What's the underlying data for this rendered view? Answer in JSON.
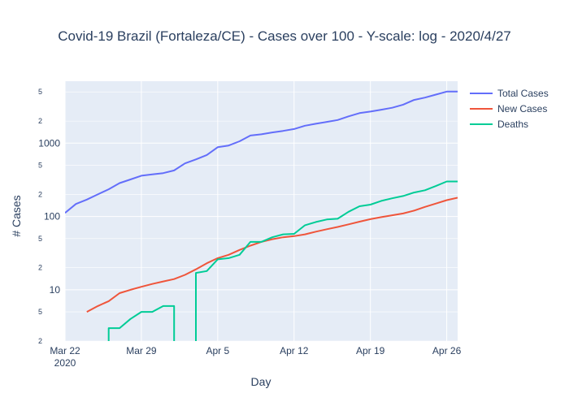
{
  "chart_data": {
    "type": "line",
    "title": "Covid-19 Brazil (Fortaleza/CE) - Cases over 100 - Y-scale: log - 2020/4/27",
    "xlabel": "Day",
    "ylabel": "# Cases",
    "x_axis": {
      "type": "date",
      "range": [
        "2020-03-22",
        "2020-04-27"
      ],
      "ticks": [
        {
          "date": "2020-03-22",
          "label": "Mar 22",
          "sublabel": "2020"
        },
        {
          "date": "2020-03-29",
          "label": "Mar 29"
        },
        {
          "date": "2020-04-05",
          "label": "Apr 5"
        },
        {
          "date": "2020-04-12",
          "label": "Apr 12"
        },
        {
          "date": "2020-04-19",
          "label": "Apr 19"
        },
        {
          "date": "2020-04-26",
          "label": "Apr 26"
        }
      ]
    },
    "y_axis": {
      "type": "log",
      "range": [
        2,
        7000
      ],
      "major_ticks": [
        {
          "value": 10,
          "label": "10"
        },
        {
          "value": 100,
          "label": "100"
        },
        {
          "value": 1000,
          "label": "1000"
        }
      ],
      "minor_ticks": [
        {
          "value": 2,
          "label": "2"
        },
        {
          "value": 5,
          "label": "5"
        },
        {
          "value": 20,
          "label": "2"
        },
        {
          "value": 50,
          "label": "5"
        },
        {
          "value": 200,
          "label": "2"
        },
        {
          "value": 500,
          "label": "5"
        },
        {
          "value": 2000,
          "label": "2"
        },
        {
          "value": 5000,
          "label": "5"
        }
      ]
    },
    "grid": true,
    "legend_position": "top-right",
    "series": [
      {
        "name": "Total Cases",
        "color": "#636efa",
        "x": [
          "2020-03-22",
          "2020-03-23",
          "2020-03-24",
          "2020-03-25",
          "2020-03-26",
          "2020-03-27",
          "2020-03-28",
          "2020-03-29",
          "2020-03-30",
          "2020-03-31",
          "2020-04-01",
          "2020-04-02",
          "2020-04-03",
          "2020-04-04",
          "2020-04-05",
          "2020-04-06",
          "2020-04-07",
          "2020-04-08",
          "2020-04-09",
          "2020-04-10",
          "2020-04-11",
          "2020-04-12",
          "2020-04-13",
          "2020-04-14",
          "2020-04-15",
          "2020-04-16",
          "2020-04-17",
          "2020-04-18",
          "2020-04-19",
          "2020-04-20",
          "2020-04-21",
          "2020-04-22",
          "2020-04-23",
          "2020-04-24",
          "2020-04-25",
          "2020-04-26",
          "2020-04-27"
        ],
        "y": [
          112,
          148,
          170,
          200,
          235,
          285,
          320,
          360,
          375,
          390,
          425,
          530,
          600,
          690,
          880,
          930,
          1060,
          1270,
          1320,
          1400,
          1470,
          1560,
          1730,
          1840,
          1950,
          2070,
          2320,
          2570,
          2700,
          2860,
          3040,
          3350,
          3880,
          4180,
          4600,
          5050,
          5050
        ]
      },
      {
        "name": "New Cases",
        "color": "#EF553B",
        "x": [
          "2020-03-24",
          "2020-03-25",
          "2020-03-26",
          "2020-03-27",
          "2020-03-28",
          "2020-03-29",
          "2020-03-30",
          "2020-03-31",
          "2020-04-01",
          "2020-04-02",
          "2020-04-03",
          "2020-04-04",
          "2020-04-05",
          "2020-04-06",
          "2020-04-07",
          "2020-04-08",
          "2020-04-09",
          "2020-04-10",
          "2020-04-11",
          "2020-04-12",
          "2020-04-13",
          "2020-04-14",
          "2020-04-15",
          "2020-04-16",
          "2020-04-17",
          "2020-04-18",
          "2020-04-19",
          "2020-04-20",
          "2020-04-21",
          "2020-04-22",
          "2020-04-23",
          "2020-04-24",
          "2020-04-25",
          "2020-04-26",
          "2020-04-27"
        ],
        "y": [
          5,
          6,
          7,
          9,
          10,
          11,
          12,
          13,
          14,
          16,
          19,
          23,
          27,
          30,
          35,
          40,
          45,
          49,
          52,
          54,
          57,
          62,
          67,
          72,
          78,
          85,
          92,
          98,
          104,
          110,
          120,
          135,
          150,
          167,
          180
        ]
      },
      {
        "name": "Deaths",
        "color": "#00cc96",
        "x": [
          "2020-03-26",
          "2020-03-26",
          "2020-03-27",
          "2020-03-28",
          "2020-03-29",
          "2020-03-30",
          "2020-03-31",
          "2020-04-01",
          "2020-04-01",
          "2020-04-03",
          "2020-04-03",
          "2020-04-04",
          "2020-04-05",
          "2020-04-06",
          "2020-04-07",
          "2020-04-08",
          "2020-04-09",
          "2020-04-10",
          "2020-04-11",
          "2020-04-12",
          "2020-04-13",
          "2020-04-14",
          "2020-04-15",
          "2020-04-16",
          "2020-04-17",
          "2020-04-18",
          "2020-04-19",
          "2020-04-20",
          "2020-04-21",
          "2020-04-22",
          "2020-04-23",
          "2020-04-24",
          "2020-04-25",
          "2020-04-26",
          "2020-04-27"
        ],
        "y": [
          1,
          3,
          3,
          4,
          5,
          5,
          6,
          6,
          1,
          1,
          17,
          18,
          26,
          27,
          30,
          45,
          45,
          52,
          57,
          58,
          76,
          84,
          91,
          93,
          116,
          138,
          145,
          163,
          177,
          190,
          212,
          228,
          260,
          300,
          300
        ]
      }
    ]
  }
}
